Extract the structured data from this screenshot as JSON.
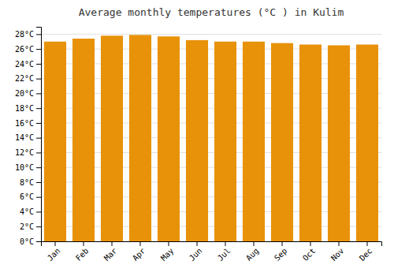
{
  "chart_data": {
    "type": "bar",
    "title": "Average monthly temperatures (°C ) in Kulim",
    "categories": [
      "Jan",
      "Feb",
      "Mar",
      "Apr",
      "May",
      "Jun",
      "Jul",
      "Aug",
      "Sep",
      "Oct",
      "Nov",
      "Dec"
    ],
    "values": [
      27.0,
      27.4,
      27.8,
      27.9,
      27.7,
      27.2,
      27.0,
      27.0,
      26.8,
      26.6,
      26.5,
      26.6
    ],
    "color": "#E8920A",
    "ylim": [
      0,
      29
    ],
    "yticks": [
      {
        "value": 0,
        "label": "0°C"
      },
      {
        "value": 2,
        "label": "2°C"
      },
      {
        "value": 4,
        "label": "4°C"
      },
      {
        "value": 6,
        "label": "6°C"
      },
      {
        "value": 8,
        "label": "8°C"
      },
      {
        "value": 10,
        "label": "10°C"
      },
      {
        "value": 12,
        "label": "12°C"
      },
      {
        "value": 14,
        "label": "14°C"
      },
      {
        "value": 16,
        "label": "16°C"
      },
      {
        "value": 18,
        "label": "18°C"
      },
      {
        "value": 20,
        "label": "20°C"
      },
      {
        "value": 22,
        "label": "22°C"
      },
      {
        "value": 24,
        "label": "24°C"
      },
      {
        "value": 26,
        "label": "26°C"
      },
      {
        "value": 28,
        "label": "28°C"
      }
    ],
    "grid": true
  }
}
